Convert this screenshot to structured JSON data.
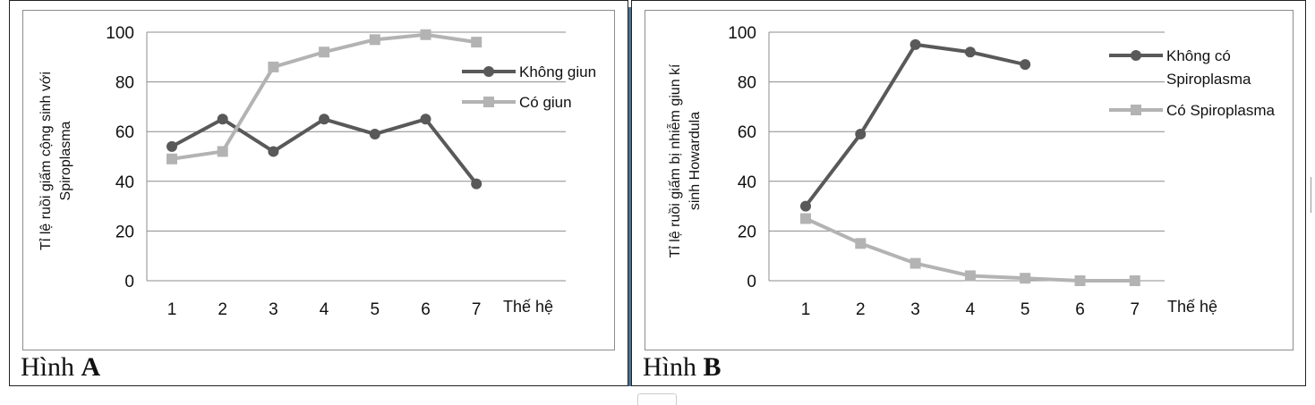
{
  "figures": [
    {
      "label": "Hình",
      "letter": "A"
    },
    {
      "label": "Hình",
      "letter": "B"
    }
  ],
  "chart_data": [
    {
      "type": "line",
      "ylabel": "Tỉ lệ ruồi giấm cộng sinh với Spiroplasma",
      "ylabel_lines": [
        "Tỉ lệ ruồi giấm cộng sinh với",
        "Spiroplasma"
      ],
      "xlabel": "Thế hệ",
      "categories": [
        "1",
        "2",
        "3",
        "4",
        "5",
        "6",
        "7"
      ],
      "ylim": [
        0,
        100
      ],
      "yticks": [
        0,
        20,
        40,
        60,
        80,
        100
      ],
      "grid": true,
      "legend_position": "right",
      "series": [
        {
          "name": "Không giun",
          "name_lines": [
            "Không giun"
          ],
          "marker": "circle",
          "color": "#595959",
          "values": [
            54,
            65,
            52,
            65,
            59,
            65,
            39
          ]
        },
        {
          "name": "Có giun",
          "name_lines": [
            "Có giun"
          ],
          "marker": "square",
          "color": "#b3b3b3",
          "values": [
            49,
            52,
            86,
            92,
            97,
            99,
            96
          ]
        }
      ]
    },
    {
      "type": "line",
      "ylabel": "Tỉ lệ ruồi giấm bị nhiễm giun kí sinh Howardula",
      "ylabel_lines": [
        "Tỉ lệ ruồi giấm bị nhiễm giun kí",
        "sinh Howardula"
      ],
      "xlabel": "Thế hệ",
      "categories": [
        "1",
        "2",
        "3",
        "4",
        "5",
        "6",
        "7"
      ],
      "ylim": [
        0,
        100
      ],
      "yticks": [
        0,
        20,
        40,
        60,
        80,
        100
      ],
      "grid": true,
      "legend_position": "right",
      "series": [
        {
          "name": "Không có Spiroplasma",
          "name_lines": [
            "Không có",
            "Spiroplasma"
          ],
          "marker": "circle",
          "color": "#595959",
          "values": [
            30,
            59,
            95,
            92,
            87,
            null,
            null
          ]
        },
        {
          "name": "Có Spiroplasma",
          "name_lines": [
            "Có Spiroplasma"
          ],
          "marker": "square",
          "color": "#b3b3b3",
          "values": [
            25,
            15,
            7,
            2,
            1,
            0,
            0
          ]
        }
      ]
    }
  ]
}
